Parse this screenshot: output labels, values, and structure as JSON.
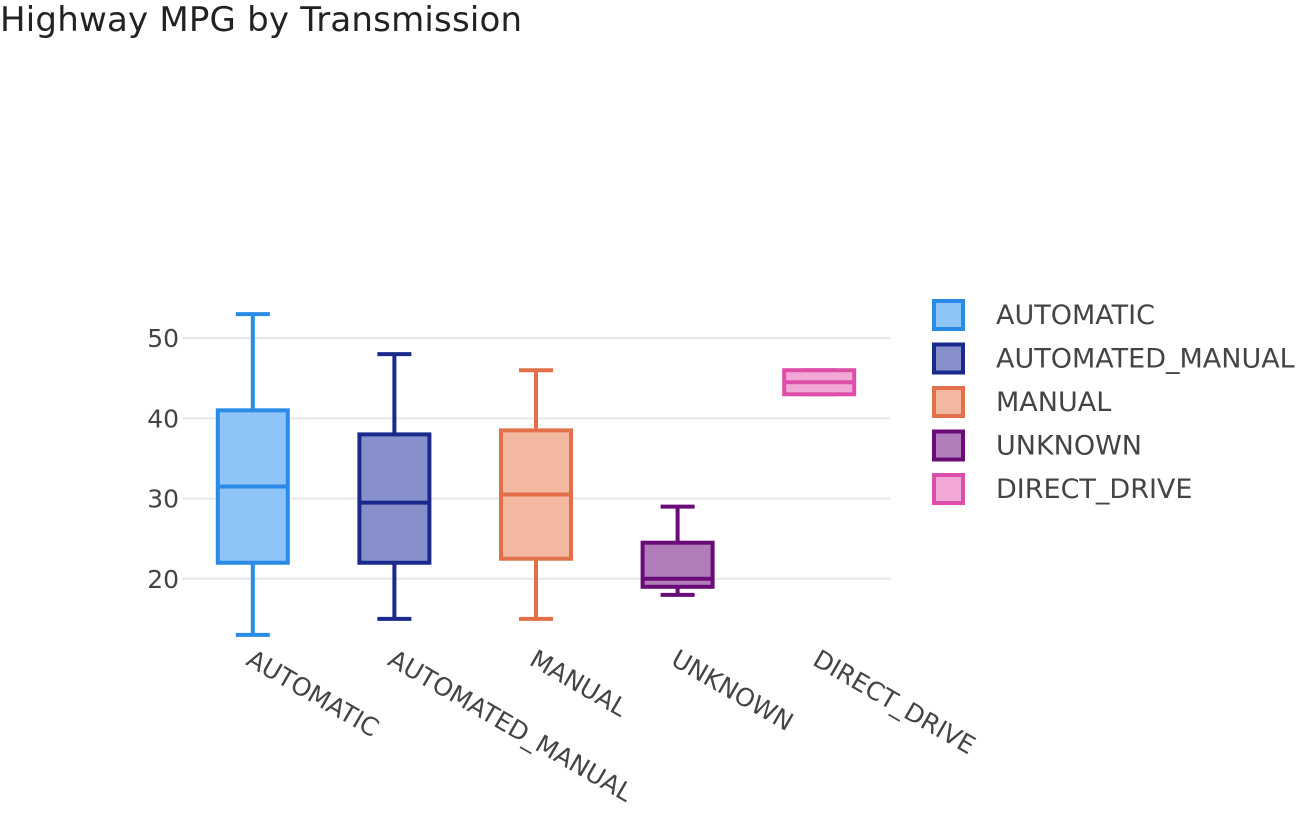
{
  "chart_data": {
    "type": "box",
    "title": "Highway MPG by Transmission",
    "xlabel": "",
    "ylabel": "",
    "ylim": [
      10,
      56
    ],
    "yticks": [
      20,
      30,
      40,
      50
    ],
    "grid": true,
    "legend_position": "right",
    "categories": [
      "AUTOMATIC",
      "AUTOMATED_MANUAL",
      "MANUAL",
      "UNKNOWN",
      "DIRECT_DRIVE"
    ],
    "series": [
      {
        "name": "AUTOMATIC",
        "min": 13,
        "q1": 22,
        "median": 31.5,
        "q3": 41,
        "max": 53,
        "line_color": "#2a8be6",
        "fill_color": "#8fc4f8"
      },
      {
        "name": "AUTOMATED_MANUAL",
        "min": 15,
        "q1": 22,
        "median": 29.5,
        "q3": 38,
        "max": 48,
        "line_color": "#1a2a8c",
        "fill_color": "#8890cc"
      },
      {
        "name": "MANUAL",
        "min": 15,
        "q1": 22.5,
        "median": 30.5,
        "q3": 38.5,
        "max": 46,
        "line_color": "#e2704a",
        "fill_color": "#f2b8a0"
      },
      {
        "name": "UNKNOWN",
        "min": 18,
        "q1": 19,
        "median": 20,
        "q3": 24.5,
        "max": 29,
        "line_color": "#6a0c78",
        "fill_color": "#b07cba"
      },
      {
        "name": "DIRECT_DRIVE",
        "min": 43,
        "q1": 43,
        "median": 44.5,
        "q3": 46,
        "max": 46,
        "line_color": "#dd4ea8",
        "fill_color": "#f2a8d6"
      }
    ]
  }
}
